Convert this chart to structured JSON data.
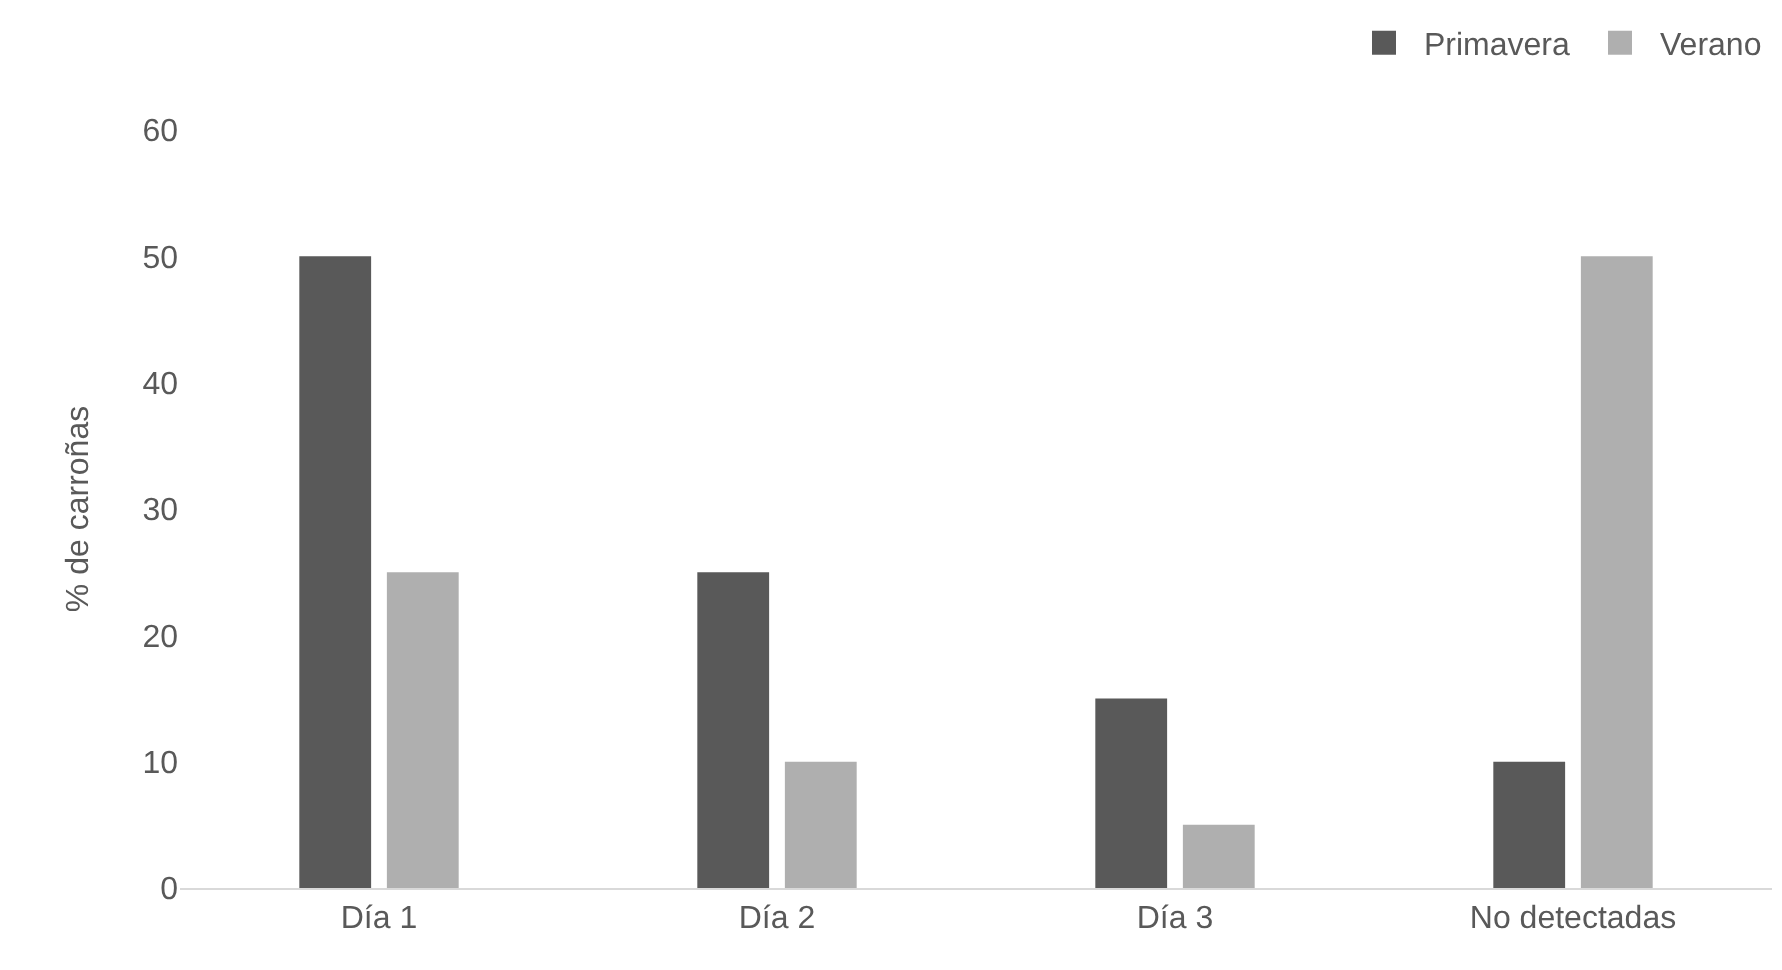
{
  "chart_data": {
    "type": "bar",
    "ylabel": "% de carroñas",
    "categories": [
      "Día 1",
      "Día 2",
      "Día 3",
      "No detectadas"
    ],
    "series": [
      {
        "name": "Primavera",
        "color": "#595959",
        "values": [
          50,
          25,
          15,
          10
        ]
      },
      {
        "name": "Verano",
        "color": "#afafaf",
        "values": [
          25,
          10,
          5,
          50
        ]
      }
    ],
    "ylim": [
      0,
      60
    ],
    "yticks": [
      0,
      10,
      20,
      30,
      40,
      50,
      60
    ],
    "grid": false,
    "legend": "top right"
  }
}
